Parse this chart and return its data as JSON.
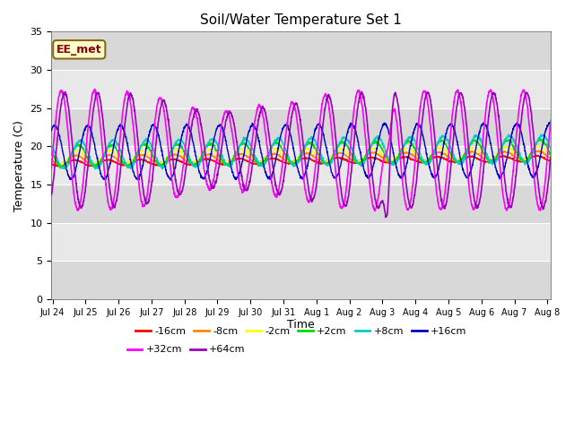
{
  "title": "Soil/Water Temperature Set 1",
  "xlabel": "Time",
  "ylabel": "Temperature (C)",
  "ylim": [
    0,
    35
  ],
  "yticks": [
    0,
    5,
    10,
    15,
    20,
    25,
    30,
    35
  ],
  "annotation": "EE_met",
  "background_color": "#ffffff",
  "plot_bg_light": "#e8e8e8",
  "plot_bg_dark": "#d0d0d0",
  "x_start": 23.97,
  "x_end": 39.1,
  "xtick_positions": [
    24,
    25,
    26,
    27,
    28,
    29,
    30,
    31,
    32,
    33,
    34,
    35,
    36,
    37,
    38,
    39
  ],
  "xtick_labels": [
    "Jul 24",
    "Jul 25",
    "Jul 26",
    "Jul 27",
    "Jul 28",
    "Jul 29",
    "Jul 30",
    "Jul 31",
    "Aug 1",
    "Aug 2",
    "Aug 3",
    "Aug 4",
    "Aug 5",
    "Aug 6",
    "Aug 7",
    "Aug 8"
  ],
  "series": [
    {
      "label": "-16cm",
      "color": "#ff0000",
      "base": 17.8,
      "amp": 0.35,
      "phase": 0.0,
      "trend": 0.04
    },
    {
      "label": "-8cm",
      "color": "#ff8800",
      "base": 18.2,
      "amp": 0.55,
      "phase": 0.05,
      "trend": 0.04
    },
    {
      "label": "-2cm",
      "color": "#ffff00",
      "base": 18.5,
      "amp": 0.85,
      "phase": 0.08,
      "trend": 0.04
    },
    {
      "label": "+2cm",
      "color": "#00dd00",
      "base": 18.7,
      "amp": 1.4,
      "phase": 0.12,
      "trend": 0.05
    },
    {
      "label": "+8cm",
      "color": "#00cccc",
      "base": 18.9,
      "amp": 1.8,
      "phase": 0.18,
      "trend": 0.05
    },
    {
      "label": "+16cm",
      "color": "#0000cc",
      "base": 19.2,
      "amp": 3.5,
      "phase": 0.4,
      "trend": 0.02
    },
    {
      "label": "+32cm",
      "color": "#ff00ff",
      "base": 19.5,
      "amp": 7.8,
      "phase": 0.6,
      "trend": 0.0
    },
    {
      "label": "+64cm",
      "color": "#9900bb",
      "base": 19.5,
      "amp": 7.5,
      "phase": 0.7,
      "trend": 0.0
    }
  ],
  "legend_order": [
    "-16cm",
    "-8cm",
    "-2cm",
    "+2cm",
    "+8cm",
    "+16cm",
    "+32cm",
    "+64cm"
  ]
}
